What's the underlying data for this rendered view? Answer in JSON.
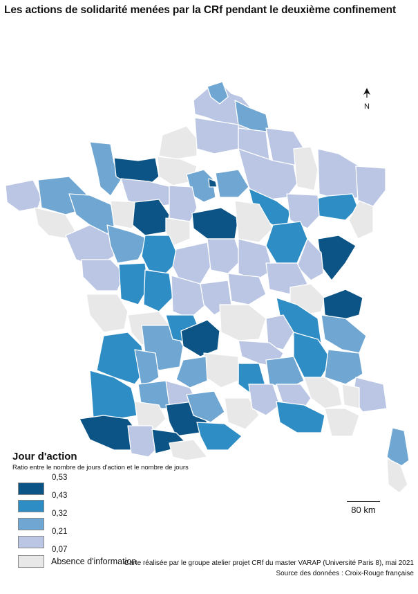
{
  "title": "Les actions de solidarité menées par la CRf pendant le deuxième confinement",
  "north_label": "N",
  "scale_label": "80 km",
  "legend": {
    "title": "Jour d'action",
    "subtitle": "Ratio entre le nombre de jours d'action et le nombre de jours",
    "breaks": [
      "0,53",
      "0,43",
      "0,32",
      "0,21",
      "0,07"
    ],
    "classes": [
      {
        "name": "class-5",
        "color": "#0b5485"
      },
      {
        "name": "class-4",
        "color": "#2d8dc4"
      },
      {
        "name": "class-3",
        "color": "#6fa6d2"
      },
      {
        "name": "class-2",
        "color": "#bac6e3"
      },
      {
        "name": "absence",
        "color": "#e8e8e8",
        "label": "Absence d'information"
      }
    ]
  },
  "credits": {
    "line1": "Carte réalisée par le groupe atelier projet CRf du master VARAP (Université Paris 8), mai 2021",
    "line2": "Source des données : Croix-Rouge française"
  },
  "colors": {
    "outline": "#ffffff",
    "text": "#111111"
  }
}
